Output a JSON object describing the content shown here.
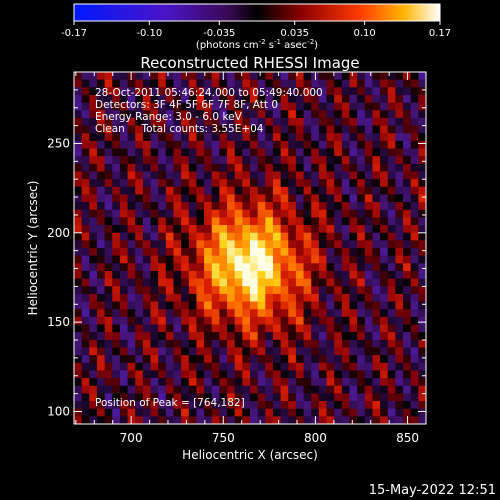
{
  "chart_data": {
    "type": "heatmap",
    "title": "Reconstructed RHESSI Image",
    "xlabel": "Heliocentric X (arcsec)",
    "ylabel": "Heliocentric Y (arcsec)",
    "xlim": [
      669,
      860
    ],
    "ylim": [
      93,
      290
    ],
    "x_ticks": [
      700,
      750,
      800,
      850
    ],
    "y_ticks": [
      100,
      150,
      200,
      250
    ],
    "colorbar": {
      "min": -0.17,
      "max": 0.17,
      "ticks": [
        "-0.17",
        "-0.10",
        "-0.035",
        "0.035",
        "0.10",
        "0.17"
      ],
      "unit_pre": "(photons cm",
      "unit_sup1": "-2",
      "unit_mid1": " s",
      "unit_sup2": "-1",
      "unit_mid2": " asec",
      "unit_sup3": "-2",
      "unit_post": ")"
    },
    "info_lines": [
      "28-Oct-2011 05:46:24.000 to 05:49:40.000",
      "Detectors: 3F 4F 5F 6F 7F 8F, Att 0",
      "Energy Range: 3.0 - 6.0 keV",
      "Clean     Total counts: 3.55E+04"
    ],
    "peak_label": "Position of Peak = [764,182]",
    "peak": [
      764,
      182
    ],
    "grid": false
  },
  "footer": {
    "timestamp": "15-May-2022 12:51"
  }
}
